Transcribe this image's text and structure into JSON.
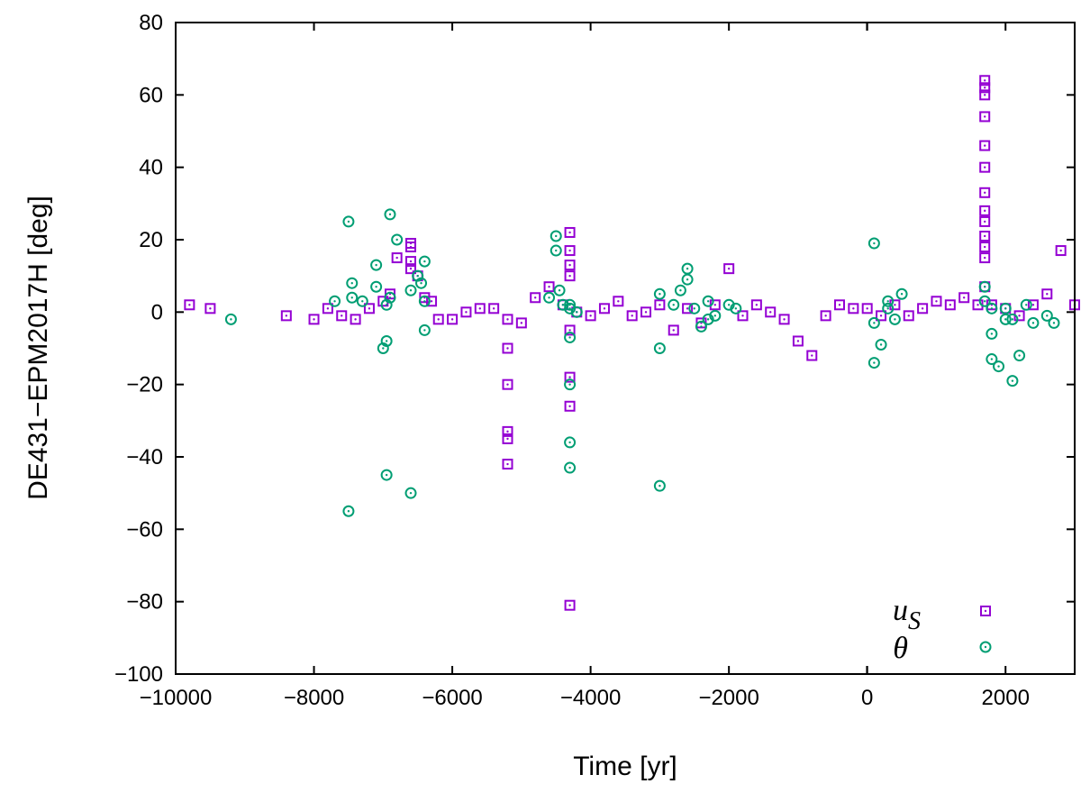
{
  "chart_data": {
    "type": "scatter",
    "title": "",
    "xlabel": "Time [yr]",
    "ylabel": "DE431−EPM2017H [deg]",
    "xlim": [
      -10000,
      3000
    ],
    "ylim": [
      -100,
      80
    ],
    "xticks": [
      -10000,
      -8000,
      -6000,
      -4000,
      -2000,
      0,
      2000
    ],
    "xtick_labels": [
      "−10000",
      "−8000",
      "−6000",
      "−4000",
      "−2000",
      "0",
      "2000"
    ],
    "yticks": [
      -100,
      -80,
      -60,
      -40,
      -20,
      0,
      20,
      40,
      60,
      80
    ],
    "ytick_labels": [
      "−100",
      "−80",
      "−60",
      "−40",
      "−20",
      "0",
      "20",
      "40",
      "60",
      "80"
    ],
    "grid": false,
    "legend_position": "bottom-right",
    "legend": [
      {
        "main": "u",
        "sub": "S"
      },
      {
        "main": "θ",
        "sub": ""
      }
    ],
    "series": [
      {
        "name": "u_S",
        "marker": "square",
        "color": "#9400d3",
        "x": [
          -9800,
          -9500,
          -8400,
          -8000,
          -7800,
          -7600,
          -7400,
          -7200,
          -7000,
          -6900,
          -6800,
          -6600,
          -6500,
          -6400,
          -6300,
          -6200,
          -6000,
          -5800,
          -5600,
          -5400,
          -5200,
          -5000,
          -4800,
          -4600,
          -4400,
          -4300,
          -4200,
          -4000,
          -3800,
          -3600,
          -3400,
          -3200,
          -3000,
          -2800,
          -2600,
          -2400,
          -2200,
          -2000,
          -1800,
          -1600,
          -1400,
          -1200,
          -1000,
          -800,
          -600,
          -400,
          -200,
          0,
          200,
          400,
          600,
          800,
          1000,
          1200,
          1400,
          1600,
          1700,
          1800,
          2000,
          2200,
          2400,
          2600,
          2800,
          3000,
          -6600,
          -6600,
          -6600,
          -5200,
          -5200,
          -5200,
          -5200,
          -5200,
          -4300,
          -4300,
          -4300,
          -4300,
          -4300,
          -4300,
          -4300,
          1700,
          1700,
          1700,
          1700,
          1700,
          1700,
          1700,
          1700,
          1700,
          1700,
          1700,
          1700
        ],
        "y": [
          2,
          1,
          -1,
          -2,
          1,
          -1,
          -2,
          1,
          3,
          5,
          15,
          19,
          10,
          4,
          3,
          -2,
          -2,
          0,
          1,
          1,
          -2,
          -3,
          4,
          7,
          2,
          -5,
          0,
          -1,
          1,
          3,
          -1,
          0,
          2,
          -5,
          1,
          -3,
          2,
          12,
          -1,
          2,
          0,
          -2,
          -8,
          -12,
          -1,
          2,
          1,
          1,
          -1,
          2,
          -1,
          1,
          3,
          2,
          4,
          2,
          7,
          2,
          1,
          -1,
          2,
          5,
          17,
          2,
          18,
          14,
          12,
          -10,
          -20,
          -33,
          -35,
          -42,
          22,
          17,
          13,
          10,
          -18,
          -26,
          -81,
          64,
          62,
          60,
          54,
          46,
          40,
          33,
          28,
          25,
          21,
          18,
          15
        ]
      },
      {
        "name": "θ",
        "marker": "circle",
        "color": "#009e73",
        "x": [
          -9200,
          -7700,
          -7500,
          -7500,
          -7450,
          -7300,
          -7100,
          -7000,
          -6950,
          -6900,
          -6800,
          -6600,
          -6600,
          -6500,
          -6450,
          -6400,
          -6400,
          -6400,
          -4600,
          -4500,
          -4500,
          -4300,
          -4300,
          -4300,
          -4300,
          -4200,
          -3000,
          -3000,
          -3000,
          -2800,
          -2700,
          -2600,
          -2600,
          -2500,
          -2400,
          -2300,
          -2300,
          -2200,
          -2000,
          -1900,
          100,
          100,
          100,
          200,
          300,
          300,
          400,
          500,
          1700,
          1700,
          1800,
          1800,
          1900,
          2000,
          2100,
          2200,
          2300,
          2400,
          2600,
          2700,
          -7450,
          -7100,
          -6950,
          -6950,
          -6900,
          -4450,
          -4400,
          -4300,
          -4300,
          1800,
          2000,
          2100
        ],
        "y": [
          -2,
          3,
          25,
          -55,
          4,
          3,
          13,
          -10,
          -45,
          27,
          20,
          -50,
          6,
          10,
          8,
          14,
          3,
          -5,
          4,
          21,
          17,
          2,
          -20,
          -36,
          -43,
          0,
          -48,
          -10,
          5,
          2,
          6,
          12,
          9,
          1,
          -4,
          3,
          -2,
          -1,
          2,
          1,
          19,
          -3,
          -14,
          -9,
          1,
          3,
          -2,
          5,
          7,
          3,
          -13,
          1,
          -15,
          -2,
          -19,
          -12,
          2,
          -3,
          -1,
          -3,
          8,
          7,
          2,
          -8,
          4,
          6,
          2,
          -7,
          1,
          -6,
          1,
          -2
        ]
      }
    ]
  }
}
